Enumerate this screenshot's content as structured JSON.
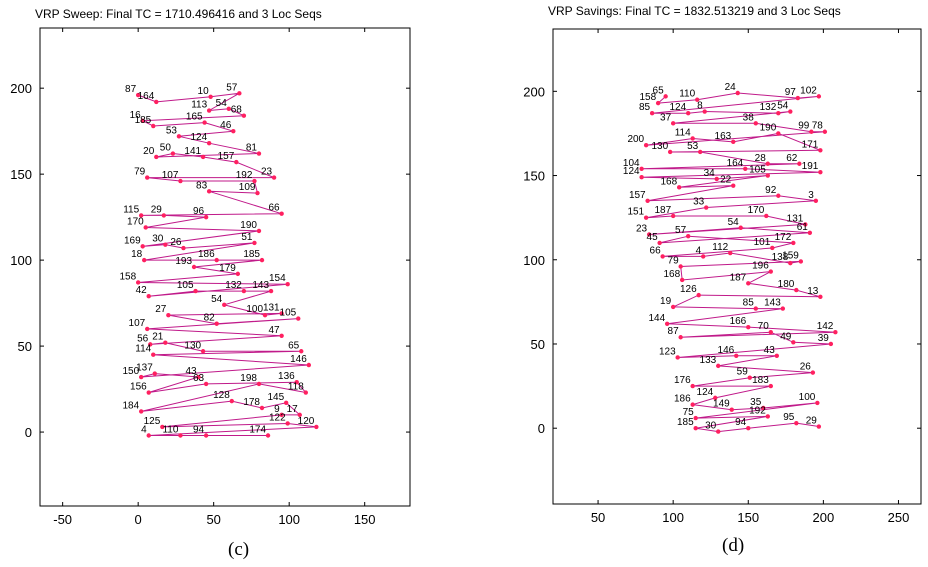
{
  "chart_data": [
    {
      "type": "line",
      "title": "VRP Sweep: Final TC = 1710.496416 and 3 Loc Seqs",
      "caption": "(c)",
      "xlabel": "",
      "ylabel": "",
      "xlim": [
        -65,
        180
      ],
      "ylim": [
        -43,
        235
      ],
      "xticks": [
        -50,
        0,
        50,
        100,
        150
      ],
      "yticks": [
        0,
        50,
        100,
        150,
        200
      ],
      "series_color": "#c01a8a",
      "marker_color": "#ff2060",
      "points": [
        {
          "label": "87",
          "x": 0,
          "y": 196
        },
        {
          "label": "164",
          "x": 12,
          "y": 192
        },
        {
          "label": "10",
          "x": 48,
          "y": 195
        },
        {
          "label": "57",
          "x": 67,
          "y": 197
        },
        {
          "label": "113",
          "x": 47,
          "y": 187
        },
        {
          "label": "54",
          "x": 60,
          "y": 188
        },
        {
          "label": "68",
          "x": 70,
          "y": 184
        },
        {
          "label": "16",
          "x": 3,
          "y": 181
        },
        {
          "label": "185",
          "x": 10,
          "y": 178
        },
        {
          "label": "165",
          "x": 44,
          "y": 180
        },
        {
          "label": "46",
          "x": 63,
          "y": 175
        },
        {
          "label": "53",
          "x": 27,
          "y": 172
        },
        {
          "label": "124",
          "x": 47,
          "y": 168
        },
        {
          "label": "81",
          "x": 80,
          "y": 162
        },
        {
          "label": "20",
          "x": 12,
          "y": 160
        },
        {
          "label": "50",
          "x": 23,
          "y": 162
        },
        {
          "label": "141",
          "x": 43,
          "y": 160
        },
        {
          "label": "157",
          "x": 65,
          "y": 157
        },
        {
          "label": "23",
          "x": 90,
          "y": 148
        },
        {
          "label": "79",
          "x": 6,
          "y": 148
        },
        {
          "label": "107",
          "x": 28,
          "y": 146
        },
        {
          "label": "192",
          "x": 77,
          "y": 146
        },
        {
          "label": "109",
          "x": 79,
          "y": 139
        },
        {
          "label": "83",
          "x": 47,
          "y": 140
        },
        {
          "label": "66",
          "x": 95,
          "y": 127
        },
        {
          "label": "115",
          "x": 2,
          "y": 126
        },
        {
          "label": "29",
          "x": 17,
          "y": 126
        },
        {
          "label": "96",
          "x": 45,
          "y": 125
        },
        {
          "label": "170",
          "x": 5,
          "y": 119
        },
        {
          "label": "190",
          "x": 80,
          "y": 117
        },
        {
          "label": "169",
          "x": 3,
          "y": 108
        },
        {
          "label": "30",
          "x": 18,
          "y": 109
        },
        {
          "label": "26",
          "x": 30,
          "y": 107
        },
        {
          "label": "51",
          "x": 77,
          "y": 110
        },
        {
          "label": "18",
          "x": 4,
          "y": 100
        },
        {
          "label": "186",
          "x": 52,
          "y": 100
        },
        {
          "label": "185",
          "x": 82,
          "y": 100
        },
        {
          "label": "193",
          "x": 37,
          "y": 96
        },
        {
          "label": "179",
          "x": 66,
          "y": 92
        },
        {
          "label": "158",
          "x": 0,
          "y": 87
        },
        {
          "label": "154",
          "x": 99,
          "y": 86
        },
        {
          "label": "42",
          "x": 7,
          "y": 79
        },
        {
          "label": "105",
          "x": 38,
          "y": 82
        },
        {
          "label": "132",
          "x": 70,
          "y": 82
        },
        {
          "label": "143",
          "x": 88,
          "y": 82
        },
        {
          "label": "54",
          "x": 57,
          "y": 74
        },
        {
          "label": "100",
          "x": 84,
          "y": 68
        },
        {
          "label": "131",
          "x": 95,
          "y": 69
        },
        {
          "label": "27",
          "x": 20,
          "y": 68
        },
        {
          "label": "82",
          "x": 52,
          "y": 63
        },
        {
          "label": "105",
          "x": 106,
          "y": 66
        },
        {
          "label": "107",
          "x": 6,
          "y": 60
        },
        {
          "label": "47",
          "x": 95,
          "y": 56
        },
        {
          "label": "56",
          "x": 8,
          "y": 51
        },
        {
          "label": "21",
          "x": 18,
          "y": 52
        },
        {
          "label": "130",
          "x": 43,
          "y": 47
        },
        {
          "label": "65",
          "x": 108,
          "y": 47
        },
        {
          "label": "114",
          "x": 10,
          "y": 45
        },
        {
          "label": "146",
          "x": 113,
          "y": 39
        },
        {
          "label": "150",
          "x": 2,
          "y": 32
        },
        {
          "label": "137",
          "x": 11,
          "y": 34
        },
        {
          "label": "43",
          "x": 40,
          "y": 32
        },
        {
          "label": "156",
          "x": 7,
          "y": 23
        },
        {
          "label": "63",
          "x": 45,
          "y": 28
        },
        {
          "label": "136",
          "x": 105,
          "y": 29
        },
        {
          "label": "118",
          "x": 111,
          "y": 23
        },
        {
          "label": "198",
          "x": 80,
          "y": 28
        },
        {
          "label": "184",
          "x": 2,
          "y": 12
        },
        {
          "label": "128",
          "x": 62,
          "y": 18
        },
        {
          "label": "178",
          "x": 82,
          "y": 14
        },
        {
          "label": "145",
          "x": 98,
          "y": 17
        },
        {
          "label": "17",
          "x": 107,
          "y": 10
        },
        {
          "label": "9",
          "x": 95,
          "y": 10
        },
        {
          "label": "125",
          "x": 16,
          "y": 3
        },
        {
          "label": "122",
          "x": 99,
          "y": 5
        },
        {
          "label": "120",
          "x": 118,
          "y": 3
        },
        {
          "label": "4",
          "x": 7,
          "y": -2
        },
        {
          "label": "110",
          "x": 28,
          "y": -2
        },
        {
          "label": "94",
          "x": 45,
          "y": -2
        },
        {
          "label": "174",
          "x": 86,
          "y": -2
        }
      ]
    },
    {
      "type": "line",
      "title": "VRP Savings: Final TC = 1832.513219 and 3 Loc Seqs",
      "caption": "(d)",
      "xlabel": "",
      "ylabel": "",
      "xlim": [
        20,
        265
      ],
      "ylim": [
        -45,
        237
      ],
      "xticks": [
        50,
        100,
        150,
        200,
        250
      ],
      "yticks": [
        0,
        50,
        100,
        150,
        200
      ],
      "series_color": "#c01a8a",
      "marker_color": "#ff2060",
      "points": [
        {
          "label": "65",
          "x": 95,
          "y": 197
        },
        {
          "label": "158",
          "x": 90,
          "y": 193
        },
        {
          "label": "110",
          "x": 116,
          "y": 195
        },
        {
          "label": "24",
          "x": 143,
          "y": 199
        },
        {
          "label": "97",
          "x": 183,
          "y": 196
        },
        {
          "label": "102",
          "x": 197,
          "y": 197
        },
        {
          "label": "85",
          "x": 86,
          "y": 187
        },
        {
          "label": "124",
          "x": 110,
          "y": 187
        },
        {
          "label": "8",
          "x": 121,
          "y": 188
        },
        {
          "label": "132",
          "x": 170,
          "y": 187
        },
        {
          "label": "54",
          "x": 178,
          "y": 188
        },
        {
          "label": "37",
          "x": 100,
          "y": 181
        },
        {
          "label": "38",
          "x": 155,
          "y": 181
        },
        {
          "label": "99",
          "x": 192,
          "y": 176
        },
        {
          "label": "78",
          "x": 201,
          "y": 176
        },
        {
          "label": "200",
          "x": 82,
          "y": 168
        },
        {
          "label": "114",
          "x": 113,
          "y": 172
        },
        {
          "label": "163",
          "x": 140,
          "y": 170
        },
        {
          "label": "190",
          "x": 170,
          "y": 175
        },
        {
          "label": "171",
          "x": 198,
          "y": 165
        },
        {
          "label": "130",
          "x": 98,
          "y": 164
        },
        {
          "label": "53",
          "x": 118,
          "y": 164
        },
        {
          "label": "28",
          "x": 163,
          "y": 157
        },
        {
          "label": "62",
          "x": 184,
          "y": 157
        },
        {
          "label": "104",
          "x": 79,
          "y": 154
        },
        {
          "label": "164",
          "x": 148,
          "y": 154
        },
        {
          "label": "191",
          "x": 198,
          "y": 152
        },
        {
          "label": "124",
          "x": 79,
          "y": 149
        },
        {
          "label": "34",
          "x": 129,
          "y": 148
        },
        {
          "label": "105",
          "x": 163,
          "y": 150
        },
        {
          "label": "168",
          "x": 104,
          "y": 143
        },
        {
          "label": "22",
          "x": 140,
          "y": 144
        },
        {
          "label": "157",
          "x": 83,
          "y": 135
        },
        {
          "label": "92",
          "x": 170,
          "y": 138
        },
        {
          "label": "3",
          "x": 195,
          "y": 135
        },
        {
          "label": "33",
          "x": 122,
          "y": 131
        },
        {
          "label": "151",
          "x": 82,
          "y": 125
        },
        {
          "label": "187",
          "x": 100,
          "y": 126
        },
        {
          "label": "170",
          "x": 162,
          "y": 126
        },
        {
          "label": "131",
          "x": 188,
          "y": 121
        },
        {
          "label": "23",
          "x": 84,
          "y": 115
        },
        {
          "label": "54",
          "x": 145,
          "y": 119
        },
        {
          "label": "61",
          "x": 191,
          "y": 116
        },
        {
          "label": "45",
          "x": 91,
          "y": 110
        },
        {
          "label": "57",
          "x": 110,
          "y": 114
        },
        {
          "label": "172",
          "x": 180,
          "y": 110
        },
        {
          "label": "101",
          "x": 166,
          "y": 107
        },
        {
          "label": "66",
          "x": 93,
          "y": 102
        },
        {
          "label": "4",
          "x": 120,
          "y": 102
        },
        {
          "label": "112",
          "x": 138,
          "y": 104
        },
        {
          "label": "138",
          "x": 178,
          "y": 98
        },
        {
          "label": "159",
          "x": 185,
          "y": 99
        },
        {
          "label": "79",
          "x": 105,
          "y": 96
        },
        {
          "label": "168",
          "x": 106,
          "y": 88
        },
        {
          "label": "196",
          "x": 165,
          "y": 93
        },
        {
          "label": "187",
          "x": 150,
          "y": 86
        },
        {
          "label": "180",
          "x": 182,
          "y": 82
        },
        {
          "label": "13",
          "x": 198,
          "y": 78
        },
        {
          "label": "126",
          "x": 117,
          "y": 79
        },
        {
          "label": "19",
          "x": 100,
          "y": 72
        },
        {
          "label": "85",
          "x": 155,
          "y": 71
        },
        {
          "label": "143",
          "x": 173,
          "y": 71
        },
        {
          "label": "144",
          "x": 96,
          "y": 62
        },
        {
          "label": "166",
          "x": 150,
          "y": 60
        },
        {
          "label": "142",
          "x": 208,
          "y": 57
        },
        {
          "label": "87",
          "x": 105,
          "y": 54
        },
        {
          "label": "70",
          "x": 165,
          "y": 57
        },
        {
          "label": "49",
          "x": 180,
          "y": 51
        },
        {
          "label": "39",
          "x": 205,
          "y": 50
        },
        {
          "label": "123",
          "x": 103,
          "y": 42
        },
        {
          "label": "146",
          "x": 142,
          "y": 43
        },
        {
          "label": "43",
          "x": 169,
          "y": 43
        },
        {
          "label": "133",
          "x": 130,
          "y": 37
        },
        {
          "label": "26",
          "x": 193,
          "y": 33
        },
        {
          "label": "59",
          "x": 151,
          "y": 30
        },
        {
          "label": "176",
          "x": 113,
          "y": 25
        },
        {
          "label": "183",
          "x": 165,
          "y": 25
        },
        {
          "label": "124",
          "x": 128,
          "y": 18
        },
        {
          "label": "186",
          "x": 113,
          "y": 14
        },
        {
          "label": "149",
          "x": 139,
          "y": 11
        },
        {
          "label": "35",
          "x": 160,
          "y": 12
        },
        {
          "label": "100",
          "x": 196,
          "y": 15
        },
        {
          "label": "75",
          "x": 115,
          "y": 6
        },
        {
          "label": "192",
          "x": 163,
          "y": 7
        },
        {
          "label": "185",
          "x": 115,
          "y": 0
        },
        {
          "label": "30",
          "x": 130,
          "y": -2
        },
        {
          "label": "94",
          "x": 150,
          "y": 0
        },
        {
          "label": "95",
          "x": 182,
          "y": 3
        },
        {
          "label": "29",
          "x": 197,
          "y": 1
        }
      ]
    }
  ]
}
